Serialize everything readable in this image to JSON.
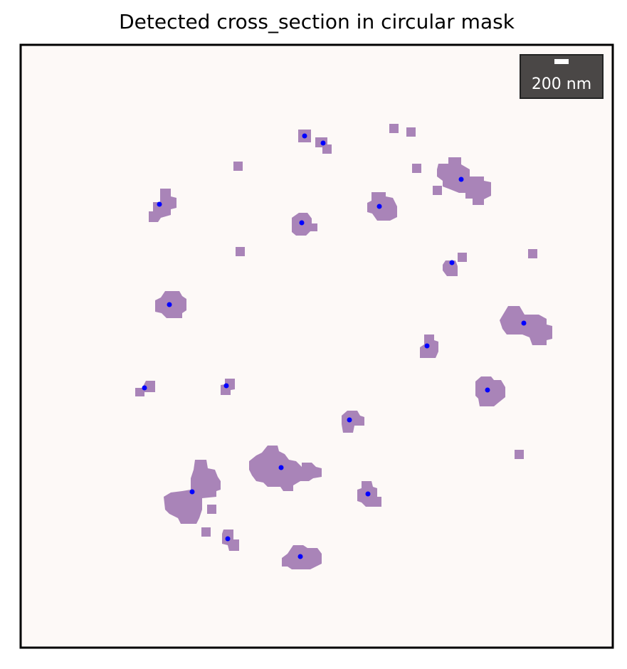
{
  "title": "Detected cross_section in circular mask",
  "scale_bar": {
    "label": "200 nm"
  },
  "colors": {
    "background": "#fdf9f7",
    "blob": "#a984b8",
    "centroid": "#0000ff",
    "frame": "#000000",
    "scale_box": "#4a4746"
  },
  "detections_count": 20
}
